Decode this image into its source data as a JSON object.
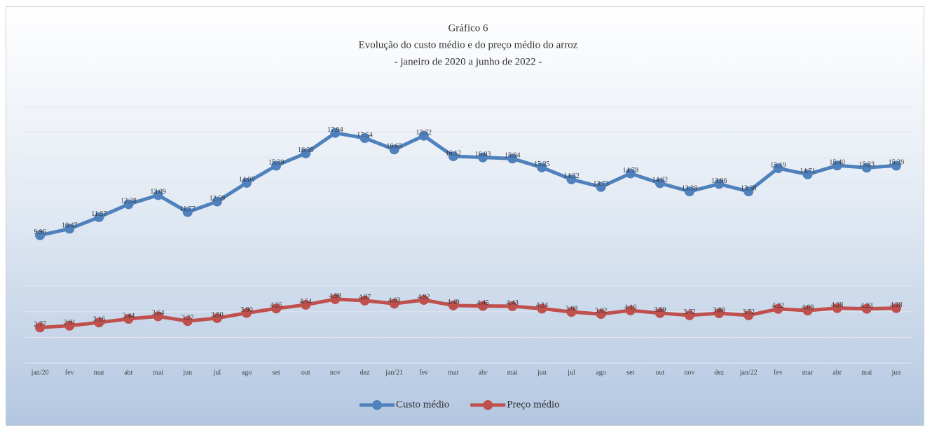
{
  "chart_data": {
    "type": "line",
    "title": [
      "Gráfico 6",
      "Evolução do custo médio e do preço médio do arroz",
      "- janeiro de 2020 a junho de 2022 -"
    ],
    "categories": [
      "jan/20",
      "fev",
      "mar",
      "abr",
      "mai",
      "jun",
      "jul",
      "ago",
      "set",
      "out",
      "nov",
      "dez",
      "jan/21",
      "fev",
      "mar",
      "abr",
      "mai",
      "jun",
      "jul",
      "ago",
      "set",
      "out",
      "nov",
      "dez",
      "jan/22",
      "fev",
      "mar",
      "abr",
      "mai",
      "jun"
    ],
    "series": [
      {
        "name": "Custo médio",
        "color": "#4f81bd",
        "values": [
          9.96,
          10.47,
          11.37,
          12.38,
          13.09,
          11.77,
          12.59,
          14.05,
          15.39,
          16.35,
          17.94,
          17.54,
          16.65,
          17.72,
          16.12,
          16.03,
          15.94,
          15.25,
          14.32,
          13.73,
          14.78,
          14.02,
          13.38,
          13.96,
          13.38,
          15.19,
          14.71,
          15.4,
          15.23,
          15.39
        ],
        "value_labels": [
          "9.96",
          "10.47",
          "11.37",
          "12.38",
          "13.09",
          "11.77",
          "12.59",
          "14.05",
          "15.39",
          "16.35",
          "17.94",
          "17.54",
          "16.65",
          "17.72",
          "16.12",
          "16.03",
          "15.94",
          "15.25",
          "14.32",
          "13.73",
          "14.78",
          "14.02",
          "13.38",
          "13.96",
          "13.38",
          "15.19",
          "14.71",
          "15.40",
          "15.23",
          "15.39"
        ]
      },
      {
        "name": "Preço médio",
        "color": "#c0504d",
        "values": [
          2.77,
          2.91,
          3.16,
          3.44,
          3.64,
          3.27,
          3.5,
          3.9,
          4.25,
          4.54,
          4.98,
          4.87,
          4.63,
          4.92,
          4.49,
          4.45,
          4.43,
          4.24,
          3.98,
          3.82,
          4.1,
          3.89,
          3.72,
          3.88,
          3.72,
          4.22,
          4.09,
          4.28,
          4.23,
          4.28
        ],
        "value_labels": [
          "2.77",
          "2.91",
          "3.16",
          "3.44",
          "3.64",
          "3.27",
          "3.50",
          "3.90",
          "4.25",
          "4.54",
          "4.98",
          "4.87",
          "4.63",
          "4.92",
          "4.49",
          "4.45",
          "4.43",
          "4.24",
          "3.98",
          "3.82",
          "4.10",
          "3.89",
          "3.72",
          "3.88",
          "3.72",
          "4.22",
          "4.09",
          "4.28",
          "4.23",
          "4.28"
        ]
      }
    ],
    "ylim": [
      0,
      20
    ],
    "yticks": [
      0,
      2,
      4,
      6,
      8,
      10,
      12,
      14,
      16,
      18,
      20
    ],
    "grid": true,
    "legend": "bottom"
  }
}
